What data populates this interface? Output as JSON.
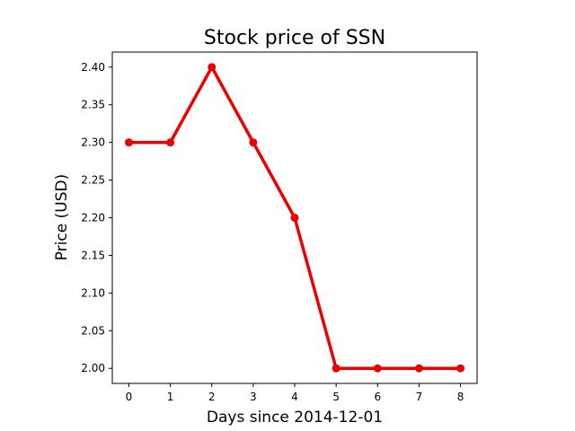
{
  "chart_data": {
    "type": "line",
    "title": "Stock price of SSN",
    "xlabel": "Days since 2014-12-01",
    "ylabel": "Price (USD)",
    "x": [
      0,
      1,
      2,
      3,
      4,
      5,
      6,
      7,
      8
    ],
    "series": [
      {
        "values": [
          2.3,
          2.3,
          2.4,
          2.3,
          2.2,
          2.0,
          2.0,
          2.0,
          2.0
        ],
        "color": "#ee0000"
      }
    ],
    "xlim": [
      -0.4,
      8.4
    ],
    "ylim": [
      1.98,
      2.42
    ],
    "xticks": [
      0,
      1,
      2,
      3,
      4,
      5,
      6,
      7,
      8
    ],
    "xtick_labels": [
      "0",
      "1",
      "2",
      "3",
      "4",
      "5",
      "6",
      "7",
      "8"
    ],
    "yticks": [
      2.0,
      2.05,
      2.1,
      2.15,
      2.2,
      2.25,
      2.3,
      2.35,
      2.4
    ],
    "ytick_labels": [
      "2.00",
      "2.05",
      "2.10",
      "2.15",
      "2.20",
      "2.25",
      "2.30",
      "2.35",
      "2.40"
    ],
    "grid": false,
    "legend": false
  }
}
